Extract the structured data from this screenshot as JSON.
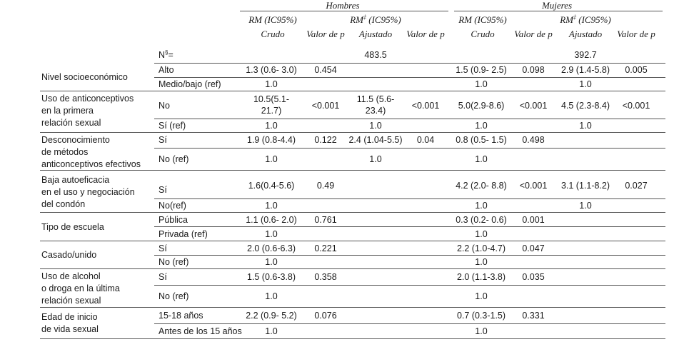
{
  "header": {
    "group_hombres": "Hombres",
    "group_mujeres": "Mujeres",
    "h_rm": "RM (IC95%)",
    "h_crudo": "Crudo",
    "h_valor": "Valor de p",
    "h_rma_base": "RM",
    "h_rma_sup": "‡",
    "h_rma_rest": " (IC95%)",
    "h_ajustado": "Ajustado",
    "n_label_base": "N",
    "n_label_sup": "§",
    "n_label_rest": "=",
    "n_hombres": "483.5",
    "n_mujeres": "392.7"
  },
  "rows": [
    {
      "variable": "Nivel socioeconómico",
      "cat1": "Alto",
      "h_crudo": "1.3 (0.6- 3.0)",
      "h_p": "0.454",
      "m_crudo": "1.5 (0.9- 2.5)",
      "m_p": "0.098",
      "m_aj": "2.9 (1.4-5.8)",
      "m_pa": "0.005",
      "cat2": "Medio/bajo (ref)",
      "h_crudo2": "1.0",
      "m_crudo2": "1.0",
      "m_aj2": "1.0"
    },
    {
      "variable_l1": "Uso de anticonceptivos",
      "variable_l2": "en la primera",
      "variable_l3": "relación sexual",
      "cat1": "No",
      "h_crudo_l1": "10.5(5.1-",
      "h_crudo_l2": "21.7)",
      "h_p": "<0.001",
      "h_aj_l1": "11.5 (5.6-",
      "h_aj_l2": "23.4)",
      "h_pa": "<0.001",
      "m_crudo": "5.0(2.9-8.6)",
      "m_p": "<0.001",
      "m_aj": "4.5 (2.3-8.4)",
      "m_pa": "<0.001",
      "cat2": "Sí (ref)",
      "h_crudo2": "1.0",
      "h_aj2": "1.0",
      "m_crudo2": "1.0",
      "m_aj2": "1.0"
    },
    {
      "variable_l1": "Desconocimiento",
      "variable_l2": "de métodos",
      "variable_l3": "anticonceptivos efectivos",
      "cat1": "Sí",
      "h_crudo": "1.9 (0.8-4.4)",
      "h_p": "0.122",
      "h_aj": "2.4 (1.04-5.5)",
      "h_pa": "0.04",
      "m_crudo": "0.8 (0.5- 1.5)",
      "m_p": "0.498",
      "cat2": "No (ref)",
      "h_crudo2": "1.0",
      "h_aj2": "1.0",
      "m_crudo2": "1.0"
    },
    {
      "variable_l1": "Baja autoeficacia",
      "variable_l2": "en el uso y negociación",
      "variable_l3": "del condón",
      "cat1": "Sí",
      "h_crudo": "1.6(0.4-5.6)",
      "h_p": "0.49",
      "m_crudo": "4.2 (2.0- 8.8)",
      "m_p": "<0.001",
      "m_aj": "3.1 (1.1-8.2)",
      "m_pa": "0.027",
      "cat2": "No(ref)",
      "h_crudo2": "1.0",
      "m_crudo2": "1.0",
      "m_aj2": "1.0"
    },
    {
      "variable": "Tipo de escuela",
      "cat1": "Pública",
      "h_crudo": "1.1 (0.6- 2.0)",
      "h_p": "0.761",
      "m_crudo": "0.3 (0.2- 0.6)",
      "m_p": "0.001",
      "cat2": "Privada (ref)",
      "h_crudo2": "1.0",
      "m_crudo2": "1.0"
    },
    {
      "variable": "Casado/unido",
      "cat1": "Sí",
      "h_crudo": "2.0 (0.6-6.3)",
      "h_p": "0.221",
      "m_crudo": "2.2 (1.0-4.7)",
      "m_p": "0.047",
      "cat2": "No (ref)",
      "h_crudo2": "1.0",
      "m_crudo2": "1.0"
    },
    {
      "variable_l1": "Uso de alcohol",
      "variable_l2": "o droga en la última",
      "variable_l3": "relación sexual",
      "cat1": "Sí",
      "h_crudo": "1.5 (0.6-3.8)",
      "h_p": "0.358",
      "m_crudo": "2.0 (1.1-3.8)",
      "m_p": "0.035",
      "cat2": "No (ref)",
      "h_crudo2": "1.0",
      "m_crudo2": "1.0"
    },
    {
      "variable_l1": "Edad de inicio",
      "variable_l2": "de vida sexual",
      "cat1": "15-18 años",
      "h_crudo": "2.2 (0.9- 5.2)",
      "h_p": "0.076",
      "m_crudo": "0.7 (0.3-1.5)",
      "m_p": "0.331",
      "cat2": "Antes de los 15 años",
      "h_crudo2": "1.0",
      "m_crudo2": "1.0"
    }
  ]
}
